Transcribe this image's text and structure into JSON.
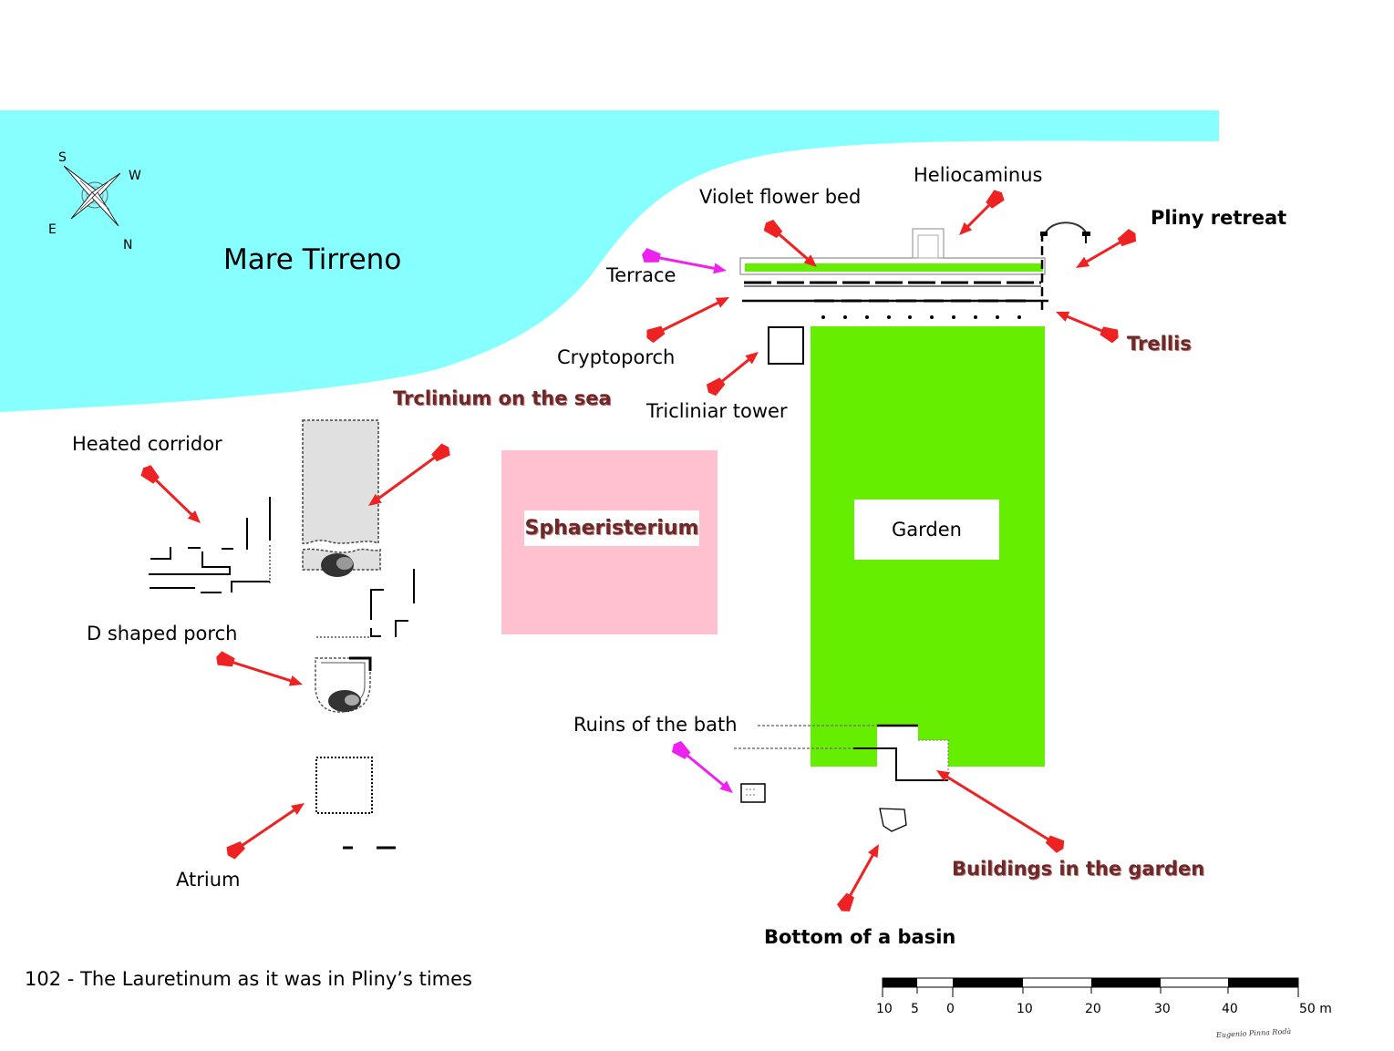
{
  "sea": {
    "name": "Mare Tirreno",
    "color": "#88ffff"
  },
  "compass": {
    "s": "S",
    "w": "W",
    "e": "E",
    "n": "N"
  },
  "labels": {
    "heliocaminus": "Heliocaminus",
    "violet_flower_bed": "Violet flower bed",
    "pliny_retreat": "Pliny retreat",
    "terrace": "Terrace",
    "cryptoporch": "Cryptoporch",
    "trellis": "Trellis",
    "triclinium_on_sea": "Trclinium on the sea",
    "tricliniar_tower": "Tricliniar tower",
    "heated_corridor": "Heated corridor",
    "sphaeristerium": "Sphaeristerium",
    "garden": "Garden",
    "d_shaped_porch": "D shaped porch",
    "ruins_of_bath": "Ruins of the bath",
    "buildings_in_garden": "Buildings in the garden",
    "atrium": "Atrium",
    "bottom_of_basin": "Bottom of a basin"
  },
  "caption": "102 - The Lauretinum as it was in Pliny’s times",
  "scale": {
    "ticks": [
      "10",
      "5",
      "0",
      "10",
      "20",
      "30",
      "40",
      "50 m"
    ]
  },
  "signature": "Eugenio Pinna Rodà",
  "colors": {
    "garden": "#66ee00",
    "sphaeristerium": "#ffc0cf",
    "triclinium": "#e0e0e0",
    "arrow_red": "#ee2222",
    "arrow_magenta": "#ee22ee"
  }
}
